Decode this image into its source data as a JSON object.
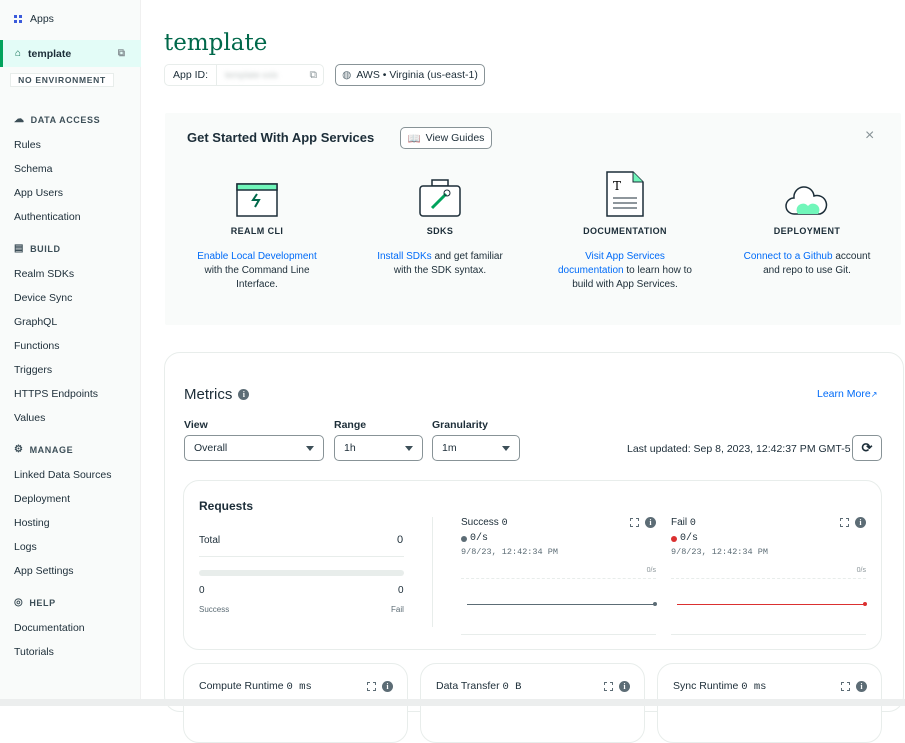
{
  "sidebar": {
    "apps": "Apps",
    "app_name": "template",
    "environment": "NO ENVIRONMENT",
    "sections": [
      {
        "title": "DATA ACCESS",
        "items": [
          "Rules",
          "Schema",
          "App Users",
          "Authentication"
        ]
      },
      {
        "title": "BUILD",
        "items": [
          "Realm SDKs",
          "Device Sync",
          "GraphQL",
          "Functions",
          "Triggers",
          "HTTPS Endpoints",
          "Values"
        ]
      },
      {
        "title": "MANAGE",
        "items": [
          "Linked Data Sources",
          "Deployment",
          "Hosting",
          "Logs",
          "App Settings"
        ]
      },
      {
        "title": "HELP",
        "items": [
          "Documentation",
          "Tutorials"
        ]
      }
    ]
  },
  "header": {
    "title": "template",
    "app_id_label": "App ID:",
    "app_id_value": "template-xxlx",
    "region": "AWS • Virginia (us-east-1)"
  },
  "get_started": {
    "title": "Get Started With App Services",
    "view_guides": "View Guides",
    "close": "×",
    "cards": [
      {
        "title": "REALM CLI",
        "link": "Enable Local Development",
        "text": "with the Command Line Interface."
      },
      {
        "title": "SDKS",
        "link": "Install SDKs",
        "text": "and get familiar with the SDK syntax."
      },
      {
        "title": "DOCUMENTATION",
        "link": "Visit App Services documentation",
        "text": "to learn how to build with App Services."
      },
      {
        "title": "DEPLOYMENT",
        "link": "Connect to a Github",
        "text": "account and repo to use Git."
      }
    ]
  },
  "metrics": {
    "title": "Metrics",
    "learn_more": "Learn More",
    "view_label": "View",
    "view_value": "Overall",
    "range_label": "Range",
    "range_value": "1h",
    "granularity_label": "Granularity",
    "granularity_value": "1m",
    "last_updated": "Last updated: Sep 8, 2023, 12:42:37 PM GMT-5",
    "requests": {
      "title": "Requests",
      "total_label": "Total",
      "total": "0",
      "success": "0",
      "fail": "0",
      "success_label": "Success",
      "fail_label": "Fail"
    },
    "success_chart": {
      "title": "Success",
      "count": "0",
      "rate": "0/s",
      "time": "9/8/23, 12:42:34 PM",
      "axis": "0/s",
      "color": "#5c6c75"
    },
    "fail_chart": {
      "title": "Fail",
      "count": "0",
      "rate": "0/s",
      "time": "9/8/23, 12:42:34 PM",
      "axis": "0/s",
      "color": "#db3030"
    },
    "bottom_cards": [
      {
        "title": "Compute Runtime",
        "value": "0 ms"
      },
      {
        "title": "Data Transfer",
        "value": "0 B"
      },
      {
        "title": "Sync Runtime",
        "value": "0 ms"
      }
    ]
  },
  "colors": {
    "brand": "#00684a",
    "link": "#016bf8",
    "accent_green": "#00a35c"
  }
}
